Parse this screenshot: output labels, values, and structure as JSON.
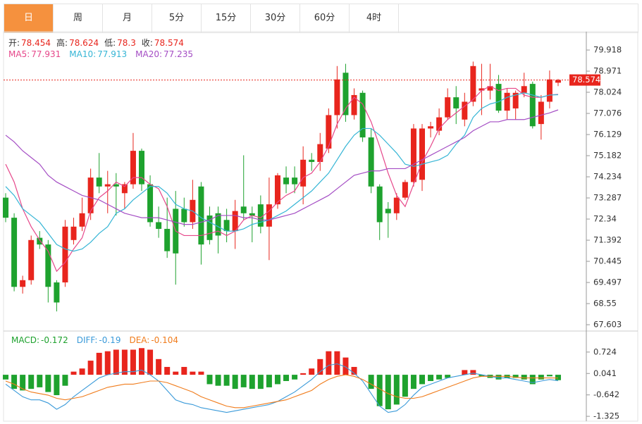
{
  "tabs": [
    "日",
    "周",
    "月",
    "5分",
    "15分",
    "30分",
    "60分",
    "4时"
  ],
  "active_tab": 0,
  "chart_data": {
    "type": "candlestick",
    "up_color": "#e8251d",
    "down_color": "#1ea22e",
    "ohlc_labels": [
      "开:",
      "高:",
      "低:",
      "收:"
    ],
    "candles": [
      [
        73.3,
        73.5,
        72.2,
        72.4
      ],
      [
        72.4,
        72.6,
        69.1,
        69.3
      ],
      [
        69.3,
        69.8,
        69.0,
        69.6
      ],
      [
        69.6,
        71.6,
        69.4,
        71.4
      ],
      [
        71.5,
        71.8,
        71.0,
        71.2
      ],
      [
        71.2,
        71.4,
        68.6,
        69.3
      ],
      [
        69.5,
        69.6,
        68.2,
        68.6
      ],
      [
        69.5,
        72.3,
        69.3,
        72.0
      ],
      [
        71.4,
        72.4,
        71.2,
        72.0
      ],
      [
        72.0,
        73.3,
        71.8,
        72.6
      ],
      [
        72.6,
        74.6,
        72.3,
        74.2
      ],
      [
        74.2,
        75.3,
        73.5,
        73.8
      ],
      [
        73.8,
        74.5,
        72.6,
        73.9
      ],
      [
        73.9,
        74.4,
        72.5,
        73.8
      ],
      [
        73.5,
        74.0,
        72.8,
        73.9
      ],
      [
        73.9,
        76.2,
        73.7,
        75.4
      ],
      [
        75.4,
        75.5,
        73.6,
        73.9
      ],
      [
        73.9,
        74.3,
        72.0,
        72.2
      ],
      [
        72.2,
        72.9,
        71.5,
        71.9
      ],
      [
        71.9,
        73.3,
        70.6,
        70.9
      ],
      [
        72.8,
        73.6,
        69.4,
        70.8
      ],
      [
        72.8,
        73.3,
        72.0,
        72.2
      ],
      [
        72.2,
        74.1,
        71.9,
        73.2
      ],
      [
        73.8,
        74.0,
        70.3,
        71.2
      ],
      [
        72.5,
        72.9,
        71.2,
        71.4
      ],
      [
        72.6,
        72.9,
        70.8,
        71.6
      ],
      [
        72.3,
        72.8,
        71.3,
        71.8
      ],
      [
        71.8,
        73.2,
        71.0,
        72.7
      ],
      [
        72.9,
        75.2,
        72.3,
        72.6
      ],
      [
        72.6,
        72.9,
        71.3,
        72.5
      ],
      [
        73.0,
        73.4,
        71.7,
        72.0
      ],
      [
        72.0,
        74.2,
        70.5,
        73.0
      ],
      [
        73.0,
        74.4,
        72.8,
        74.3
      ],
      [
        74.2,
        74.7,
        73.5,
        73.9
      ],
      [
        74.2,
        74.7,
        73.5,
        73.9
      ],
      [
        73.8,
        75.6,
        73.0,
        75.0
      ],
      [
        75.0,
        75.3,
        74.5,
        74.9
      ],
      [
        74.9,
        76.2,
        74.5,
        75.7
      ],
      [
        75.5,
        77.3,
        75.3,
        77.0
      ],
      [
        77.0,
        79.2,
        76.4,
        78.6
      ],
      [
        78.9,
        79.3,
        76.7,
        77.0
      ],
      [
        77.0,
        78.2,
        76.8,
        77.9
      ],
      [
        78.0,
        78.1,
        75.8,
        76.0
      ],
      [
        76.0,
        76.4,
        73.5,
        73.8
      ],
      [
        73.8,
        73.9,
        71.4,
        72.2
      ],
      [
        72.8,
        73.1,
        71.5,
        72.6
      ],
      [
        72.6,
        73.5,
        72.3,
        73.3
      ],
      [
        73.3,
        74.1,
        73.2,
        74.0
      ],
      [
        74.0,
        76.6,
        73.8,
        76.4
      ],
      [
        74.1,
        76.6,
        73.6,
        76.4
      ],
      [
        76.4,
        76.7,
        76.0,
        76.5
      ],
      [
        76.3,
        77.3,
        76.1,
        76.9
      ],
      [
        76.9,
        78.2,
        76.8,
        77.8
      ],
      [
        77.8,
        78.3,
        76.6,
        77.3
      ],
      [
        76.8,
        78.0,
        76.5,
        77.6
      ],
      [
        77.6,
        79.4,
        77.4,
        79.2
      ],
      [
        78.1,
        79.3,
        77.0,
        78.2
      ],
      [
        78.1,
        79.3,
        77.7,
        78.3
      ],
      [
        78.4,
        78.8,
        77.1,
        77.2
      ],
      [
        77.2,
        78.2,
        76.8,
        78.0
      ],
      [
        77.3,
        78.1,
        76.8,
        78.0
      ],
      [
        78.0,
        78.9,
        77.8,
        78.3
      ],
      [
        78.4,
        78.5,
        76.4,
        76.5
      ],
      [
        76.6,
        77.9,
        75.9,
        77.6
      ],
      [
        77.6,
        79.0,
        77.3,
        78.6
      ],
      [
        78.454,
        78.624,
        78.3,
        78.574
      ]
    ],
    "ma": [
      {
        "name": "MA5:",
        "color": "#e6478a",
        "values": [
          74.8,
          74.0,
          72.8,
          72.0,
          71.4,
          70.9,
          70.0,
          70.4,
          71.0,
          71.5,
          72.7,
          73.3,
          73.6,
          74.0,
          73.8,
          74.2,
          74.2,
          73.9,
          73.7,
          72.9,
          71.8,
          71.6,
          71.6,
          71.6,
          71.7,
          71.8,
          71.6,
          71.8,
          72.3,
          72.5,
          72.4,
          72.7,
          73.1,
          73.4,
          73.6,
          74.2,
          74.4,
          74.9,
          75.6,
          76.6,
          77.3,
          77.8,
          77.5,
          76.7,
          75.6,
          74.4,
          73.4,
          72.9,
          73.9,
          74.9,
          75.6,
          76.4,
          76.8,
          77.1,
          77.4,
          77.7,
          78.1,
          78.3,
          78.1,
          78.2,
          78.2,
          77.9,
          77.8,
          77.8,
          77.9,
          77.931
        ]
      },
      {
        "name": "MA10:",
        "color": "#35b5d5",
        "values": [
          73.8,
          73.4,
          72.8,
          72.5,
          72.2,
          71.7,
          71.2,
          71.0,
          70.9,
          71.0,
          71.3,
          71.7,
          72.0,
          72.6,
          72.8,
          73.2,
          73.5,
          73.8,
          73.8,
          73.5,
          73.0,
          72.8,
          72.7,
          72.4,
          72.2,
          72.0,
          71.8,
          71.8,
          71.9,
          72.1,
          72.2,
          72.3,
          72.5,
          72.7,
          73.0,
          73.3,
          73.6,
          74.0,
          74.4,
          75.0,
          75.6,
          76.1,
          76.4,
          76.4,
          76.1,
          75.7,
          75.3,
          74.8,
          74.7,
          74.8,
          74.9,
          75.0,
          75.2,
          75.7,
          76.1,
          76.9,
          77.3,
          77.5,
          77.6,
          77.8,
          77.9,
          78.0,
          77.9,
          77.8,
          77.9,
          77.913
        ]
      },
      {
        "name": "MA20:",
        "color": "#a44dc4",
        "values": [
          76.1,
          75.8,
          75.4,
          75.1,
          74.8,
          74.3,
          74.0,
          73.8,
          73.6,
          73.4,
          73.3,
          73.2,
          73.0,
          72.8,
          72.6,
          72.5,
          72.4,
          72.4,
          72.4,
          72.3,
          72.2,
          72.1,
          72.1,
          72.2,
          72.3,
          72.5,
          72.5,
          72.5,
          72.4,
          72.4,
          72.3,
          72.3,
          72.4,
          72.5,
          72.6,
          72.8,
          73.0,
          73.2,
          73.4,
          73.7,
          74.0,
          74.3,
          74.4,
          74.5,
          74.5,
          74.6,
          74.6,
          74.6,
          74.8,
          75.0,
          75.2,
          75.4,
          75.6,
          75.8,
          76.0,
          76.3,
          76.5,
          76.7,
          76.7,
          76.8,
          76.8,
          76.8,
          76.9,
          77.0,
          77.1,
          77.235
        ]
      }
    ],
    "ylim": [
      67.32,
      80.74
    ],
    "yticks": [
      79.918,
      78.971,
      78.024,
      77.076,
      76.129,
      75.182,
      74.234,
      73.287,
      72.34,
      71.392,
      70.445,
      69.497,
      68.55,
      67.603
    ],
    "macd": {
      "type": "macd",
      "bars": {
        "name": "MACD:",
        "color": "#1ea22e",
        "values": [
          -0.15,
          -0.45,
          -0.5,
          -0.45,
          -0.4,
          -0.55,
          -0.65,
          -0.35,
          0.1,
          0.2,
          0.45,
          0.7,
          0.75,
          0.8,
          0.8,
          0.8,
          0.85,
          0.8,
          0.5,
          0.25,
          0.1,
          0.25,
          0.1,
          0.1,
          -0.3,
          -0.35,
          -0.35,
          -0.45,
          -0.4,
          -0.45,
          -0.45,
          -0.4,
          -0.3,
          -0.2,
          -0.15,
          0.05,
          0.2,
          0.5,
          0.75,
          0.75,
          0.55,
          0.25,
          0.0,
          -0.45,
          -1.0,
          -1.1,
          -0.95,
          -0.7,
          -0.45,
          -0.3,
          -0.2,
          -0.15,
          -0.1,
          0.0,
          0.15,
          0.15,
          -0.05,
          -0.1,
          -0.15,
          -0.1,
          -0.1,
          -0.15,
          -0.3,
          -0.15,
          -0.05,
          -0.172
        ]
      },
      "lines": [
        {
          "name": "DIFF:",
          "color": "#3a9ad9",
          "values": [
            -0.3,
            -0.5,
            -0.7,
            -0.8,
            -0.8,
            -0.9,
            -1.1,
            -0.95,
            -0.7,
            -0.5,
            -0.3,
            -0.1,
            0.0,
            0.05,
            0.1,
            0.1,
            0.15,
            0.0,
            -0.2,
            -0.5,
            -0.8,
            -0.9,
            -0.95,
            -1.05,
            -1.1,
            -1.15,
            -1.2,
            -1.15,
            -1.1,
            -1.05,
            -1.0,
            -0.95,
            -0.85,
            -0.7,
            -0.55,
            -0.35,
            -0.15,
            0.1,
            0.3,
            0.35,
            0.25,
            0.05,
            -0.2,
            -0.6,
            -1.0,
            -1.2,
            -1.15,
            -0.95,
            -0.65,
            -0.4,
            -0.3,
            -0.2,
            -0.1,
            -0.05,
            0.0,
            0.05,
            0.0,
            -0.05,
            -0.1,
            -0.1,
            -0.15,
            -0.2,
            -0.25,
            -0.2,
            -0.15,
            -0.19
          ]
        },
        {
          "name": "DEA:",
          "color": "#f07c1c",
          "values": [
            -0.2,
            -0.3,
            -0.45,
            -0.55,
            -0.6,
            -0.65,
            -0.75,
            -0.8,
            -0.75,
            -0.7,
            -0.6,
            -0.5,
            -0.4,
            -0.35,
            -0.3,
            -0.3,
            -0.25,
            -0.2,
            -0.2,
            -0.25,
            -0.35,
            -0.45,
            -0.55,
            -0.7,
            -0.8,
            -0.9,
            -1.0,
            -1.05,
            -1.05,
            -1.0,
            -0.95,
            -0.9,
            -0.85,
            -0.8,
            -0.7,
            -0.6,
            -0.5,
            -0.3,
            -0.15,
            -0.05,
            0.0,
            -0.05,
            -0.15,
            -0.3,
            -0.45,
            -0.6,
            -0.7,
            -0.75,
            -0.75,
            -0.7,
            -0.6,
            -0.5,
            -0.4,
            -0.3,
            -0.2,
            -0.1,
            -0.05,
            -0.05,
            -0.05,
            -0.05,
            -0.08,
            -0.1,
            -0.1,
            -0.1,
            -0.1,
            -0.104
          ]
        }
      ],
      "ylim": [
        -1.48,
        1.17
      ],
      "yticks": [
        0.724,
        0.041,
        -0.642,
        -1.325
      ]
    }
  }
}
